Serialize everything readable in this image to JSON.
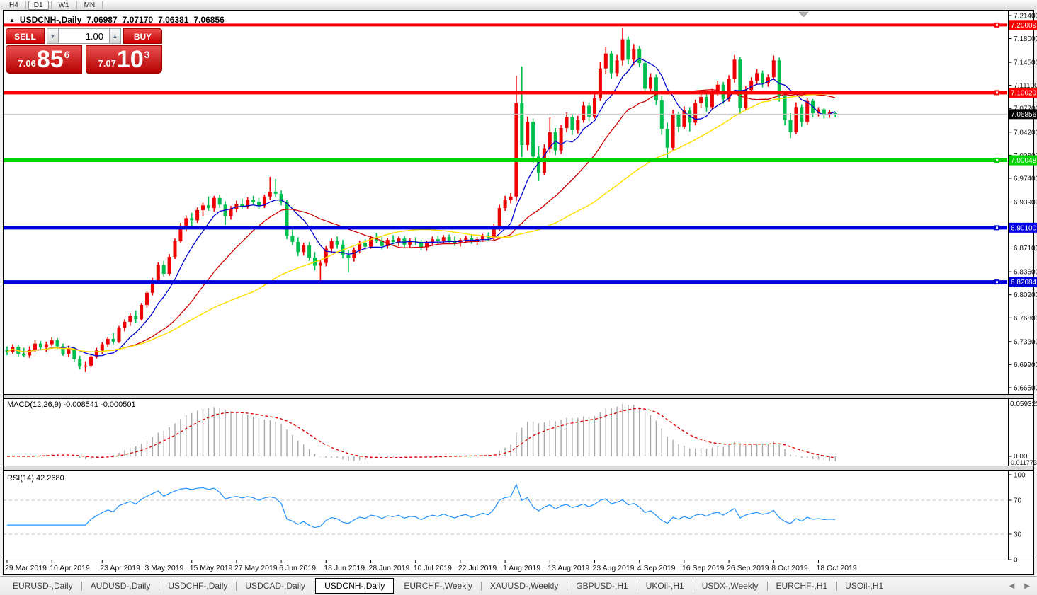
{
  "window": {
    "timeframes": [
      {
        "label": "H4",
        "active": false
      },
      {
        "label": "D1",
        "active": true
      },
      {
        "label": "W1",
        "active": false
      },
      {
        "label": "MN",
        "active": false
      }
    ]
  },
  "chart": {
    "title": {
      "collapse_icon": "▲",
      "symbol": "USDCNH-,Daily",
      "open": "7.06987",
      "high": "7.07170",
      "low": "7.06381",
      "close": "7.06856"
    },
    "trade_panel": {
      "sell_label": "SELL",
      "buy_label": "BUY",
      "volume": "1.00",
      "spin_down_icon": "▼",
      "spin_up_icon": "▲",
      "sell_price": {
        "prefix": "7.06",
        "big": "85",
        "sup": "6"
      },
      "buy_price": {
        "prefix": "7.07",
        "big": "10",
        "sup": "3"
      }
    },
    "price_axis_ticks": [
      "7.21400",
      "7.18000",
      "7.14500",
      "7.11100",
      "7.07700",
      "7.04200",
      "7.00800",
      "6.97400",
      "6.93900",
      "6.87100",
      "6.83600",
      "6.80200",
      "6.76800",
      "6.73300",
      "6.69900",
      "6.66500"
    ],
    "levels": [
      {
        "label": "7.20009",
        "price": 7.20009,
        "color": "#ff0000",
        "thickness": 4
      },
      {
        "label": "7.10029",
        "price": 7.10029,
        "color": "#ff0000",
        "thickness": 5
      },
      {
        "label": "7.00048",
        "price": 7.00048,
        "color": "#00d400",
        "thickness": 5
      },
      {
        "label": "6.90100",
        "price": 6.901,
        "color": "#0000dd",
        "thickness": 5
      },
      {
        "label": "6.82084",
        "price": 6.82084,
        "color": "#0000dd",
        "thickness": 5
      }
    ],
    "current_price": {
      "label": "7.06856",
      "value": 7.06856
    }
  },
  "chart_data": {
    "type": "candlestick",
    "symbol": "USDCNH",
    "timeframe": "Daily",
    "y_range": [
      6.665,
      7.214
    ],
    "date_labels": [
      [
        0,
        "29 Mar 2019"
      ],
      [
        8,
        "10 Apr 2019"
      ],
      [
        17,
        "23 Apr 2019"
      ],
      [
        25,
        "3 May 2019"
      ],
      [
        33,
        "15 May 2019"
      ],
      [
        41,
        "27 May 2019"
      ],
      [
        49,
        "6 Jun 2019"
      ],
      [
        57,
        "18 Jun 2019"
      ],
      [
        65,
        "28 Jun 2019"
      ],
      [
        73,
        "10 Jul 2019"
      ],
      [
        81,
        "22 Jul 2019"
      ],
      [
        89,
        "1 Aug 2019"
      ],
      [
        97,
        "13 Aug 2019"
      ],
      [
        105,
        "23 Aug 2019"
      ],
      [
        113,
        "4 Sep 2019"
      ],
      [
        121,
        "16 Sep 2019"
      ],
      [
        129,
        "26 Sep 2019"
      ],
      [
        137,
        "8 Oct 2019"
      ],
      [
        145,
        "18 Oct 2019"
      ]
    ],
    "ma_periods": {
      "fast": 8,
      "mid": 21,
      "slow": 45
    },
    "candles": [
      [
        6.721,
        6.726,
        6.713,
        6.718
      ],
      [
        6.718,
        6.729,
        6.715,
        6.7255
      ],
      [
        6.7255,
        6.728,
        6.711,
        6.715
      ],
      [
        6.715,
        6.724,
        6.71,
        6.7125
      ],
      [
        6.7125,
        6.726,
        6.709,
        6.721
      ],
      [
        6.721,
        6.735,
        6.718,
        6.73
      ],
      [
        6.73,
        6.734,
        6.72,
        6.7245
      ],
      [
        6.7245,
        6.733,
        6.718,
        6.729
      ],
      [
        6.729,
        6.7395,
        6.726,
        6.735
      ],
      [
        6.735,
        6.738,
        6.722,
        6.726
      ],
      [
        6.726,
        6.73,
        6.712,
        6.715
      ],
      [
        6.715,
        6.727,
        6.71,
        6.723
      ],
      [
        6.723,
        6.725,
        6.703,
        6.707
      ],
      [
        6.707,
        6.712,
        6.692,
        6.696
      ],
      [
        6.696,
        6.704,
        6.688,
        6.6975
      ],
      [
        6.6975,
        6.715,
        6.695,
        6.711
      ],
      [
        6.711,
        6.724,
        6.708,
        6.72
      ],
      [
        6.72,
        6.732,
        6.715,
        6.729
      ],
      [
        6.729,
        6.74,
        6.725,
        6.737
      ],
      [
        6.737,
        6.746,
        6.729,
        6.733
      ],
      [
        6.733,
        6.756,
        6.731,
        6.753
      ],
      [
        6.753,
        6.766,
        6.748,
        6.762
      ],
      [
        6.762,
        6.775,
        6.756,
        6.771
      ],
      [
        6.771,
        6.779,
        6.761,
        6.766
      ],
      [
        6.766,
        6.79,
        6.764,
        6.787
      ],
      [
        6.787,
        6.808,
        6.783,
        6.805
      ],
      [
        6.805,
        6.827,
        6.801,
        6.823
      ],
      [
        6.823,
        6.85,
        6.82,
        6.846
      ],
      [
        6.846,
        6.852,
        6.829,
        6.833
      ],
      [
        6.833,
        6.862,
        6.83,
        6.858
      ],
      [
        6.858,
        6.885,
        6.855,
        6.881
      ],
      [
        6.881,
        6.908,
        6.879,
        6.904
      ],
      [
        6.904,
        6.919,
        6.895,
        6.915
      ],
      [
        6.915,
        6.923,
        6.901,
        6.912
      ],
      [
        6.912,
        6.931,
        6.908,
        6.927
      ],
      [
        6.927,
        6.938,
        6.918,
        6.934
      ],
      [
        6.934,
        6.947,
        6.926,
        6.93
      ],
      [
        6.93,
        6.948,
        6.925,
        6.945
      ],
      [
        6.945,
        6.95,
        6.93,
        6.935
      ],
      [
        6.935,
        6.94,
        6.905,
        6.918
      ],
      [
        6.918,
        6.933,
        6.913,
        6.929
      ],
      [
        6.929,
        6.941,
        6.924,
        6.936
      ],
      [
        6.936,
        6.944,
        6.928,
        6.932
      ],
      [
        6.932,
        6.946,
        6.929,
        6.942
      ],
      [
        6.942,
        6.948,
        6.935,
        6.939
      ],
      [
        6.939,
        6.945,
        6.929,
        6.933
      ],
      [
        6.933,
        6.95,
        6.93,
        6.947
      ],
      [
        6.947,
        6.976,
        6.942,
        6.954
      ],
      [
        6.954,
        6.973,
        6.946,
        6.951
      ],
      [
        6.951,
        6.956,
        6.934,
        6.939
      ],
      [
        6.939,
        6.942,
        6.884,
        6.889
      ],
      [
        6.889,
        6.898,
        6.875,
        6.88
      ],
      [
        6.88,
        6.887,
        6.859,
        6.865
      ],
      [
        6.865,
        6.879,
        6.86,
        6.875
      ],
      [
        6.875,
        6.88,
        6.852,
        6.857
      ],
      [
        6.857,
        6.865,
        6.838,
        6.845
      ],
      [
        6.845,
        6.853,
        6.823,
        6.849
      ],
      [
        6.849,
        6.874,
        6.844,
        6.87
      ],
      [
        6.87,
        6.885,
        6.864,
        6.881
      ],
      [
        6.881,
        6.888,
        6.87,
        6.876
      ],
      [
        6.876,
        6.883,
        6.856,
        6.861
      ],
      [
        6.861,
        6.868,
        6.835,
        6.856
      ],
      [
        6.856,
        6.872,
        6.851,
        6.868
      ],
      [
        6.868,
        6.882,
        6.863,
        6.878
      ],
      [
        6.878,
        6.884,
        6.869,
        6.873
      ],
      [
        6.873,
        6.889,
        6.87,
        6.885
      ],
      [
        6.885,
        6.893,
        6.878,
        6.882
      ],
      [
        6.882,
        6.887,
        6.869,
        6.874
      ],
      [
        6.874,
        6.886,
        6.87,
        6.883
      ],
      [
        6.883,
        6.89,
        6.876,
        6.88
      ],
      [
        6.88,
        6.888,
        6.874,
        6.885
      ],
      [
        6.885,
        6.889,
        6.872,
        6.876
      ],
      [
        6.876,
        6.885,
        6.871,
        6.881
      ],
      [
        6.881,
        6.887,
        6.875,
        6.88
      ],
      [
        6.88,
        6.883,
        6.868,
        6.872
      ],
      [
        6.872,
        6.882,
        6.867,
        6.879
      ],
      [
        6.879,
        6.888,
        6.875,
        6.884
      ],
      [
        6.884,
        6.889,
        6.877,
        6.881
      ],
      [
        6.881,
        6.89,
        6.878,
        6.887
      ],
      [
        6.887,
        6.891,
        6.879,
        6.882
      ],
      [
        6.882,
        6.888,
        6.874,
        6.878
      ],
      [
        6.878,
        6.886,
        6.873,
        6.883
      ],
      [
        6.883,
        6.889,
        6.878,
        6.886
      ],
      [
        6.886,
        6.89,
        6.877,
        6.88
      ],
      [
        6.88,
        6.887,
        6.875,
        6.884
      ],
      [
        6.884,
        6.892,
        6.88,
        6.889
      ],
      [
        6.889,
        6.894,
        6.882,
        6.886
      ],
      [
        6.886,
        6.907,
        6.883,
        6.899
      ],
      [
        6.899,
        6.935,
        6.896,
        6.93
      ],
      [
        6.93,
        6.948,
        6.926,
        6.942
      ],
      [
        6.942,
        6.952,
        6.937,
        6.947
      ],
      [
        6.947,
        7.125,
        6.94,
        7.085
      ],
      [
        7.085,
        7.139,
        7.005,
        7.023
      ],
      [
        7.023,
        7.065,
        7.015,
        7.057
      ],
      [
        7.057,
        7.062,
        6.996,
        7.006
      ],
      [
        7.006,
        7.021,
        6.97,
        6.982
      ],
      [
        6.982,
        7.024,
        6.978,
        7.018
      ],
      [
        7.018,
        7.064,
        7.012,
        7.042
      ],
      [
        7.042,
        7.048,
        7.008,
        7.015
      ],
      [
        7.015,
        7.053,
        7.01,
        7.048
      ],
      [
        7.048,
        7.071,
        7.042,
        7.064
      ],
      [
        7.064,
        7.069,
        7.038,
        7.045
      ],
      [
        7.045,
        7.066,
        7.04,
        7.06
      ],
      [
        7.06,
        7.087,
        7.056,
        7.081
      ],
      [
        7.081,
        7.086,
        7.058,
        7.065
      ],
      [
        7.065,
        7.098,
        7.062,
        7.092
      ],
      [
        7.092,
        7.145,
        7.088,
        7.136
      ],
      [
        7.136,
        7.168,
        7.128,
        7.158
      ],
      [
        7.158,
        7.162,
        7.121,
        7.129
      ],
      [
        7.129,
        7.156,
        7.124,
        7.148
      ],
      [
        7.148,
        7.196,
        7.14,
        7.179
      ],
      [
        7.179,
        7.183,
        7.142,
        7.149
      ],
      [
        7.149,
        7.172,
        7.141,
        7.165
      ],
      [
        7.165,
        7.169,
        7.138,
        7.144
      ],
      [
        7.144,
        7.148,
        7.098,
        7.106
      ],
      [
        7.106,
        7.129,
        7.101,
        7.123
      ],
      [
        7.123,
        7.127,
        7.082,
        7.089
      ],
      [
        7.089,
        7.095,
        7.038,
        7.047
      ],
      [
        7.047,
        7.056,
        6.998,
        7.019
      ],
      [
        7.019,
        7.075,
        7.015,
        7.068
      ],
      [
        7.068,
        7.072,
        7.042,
        7.05
      ],
      [
        7.05,
        7.08,
        7.046,
        7.074
      ],
      [
        7.074,
        7.079,
        7.043,
        7.056
      ],
      [
        7.056,
        7.09,
        7.052,
        7.085
      ],
      [
        7.085,
        7.099,
        7.078,
        7.094
      ],
      [
        7.094,
        7.098,
        7.072,
        7.079
      ],
      [
        7.079,
        7.106,
        7.075,
        7.101
      ],
      [
        7.101,
        7.118,
        7.095,
        7.112
      ],
      [
        7.112,
        7.116,
        7.084,
        7.091
      ],
      [
        7.091,
        7.126,
        7.087,
        7.12
      ],
      [
        7.12,
        7.156,
        7.115,
        7.149
      ],
      [
        7.149,
        7.153,
        7.069,
        7.078
      ],
      [
        7.078,
        7.11,
        7.074,
        7.104
      ],
      [
        7.104,
        7.123,
        7.099,
        7.118
      ],
      [
        7.118,
        7.135,
        7.112,
        7.129
      ],
      [
        7.129,
        7.133,
        7.108,
        7.114
      ],
      [
        7.114,
        7.127,
        7.109,
        7.123
      ],
      [
        7.123,
        7.155,
        7.119,
        7.148
      ],
      [
        7.148,
        7.152,
        7.087,
        7.095
      ],
      [
        7.095,
        7.101,
        7.052,
        7.06
      ],
      [
        7.06,
        7.07,
        7.033,
        7.042
      ],
      [
        7.042,
        7.086,
        7.039,
        7.079
      ],
      [
        7.079,
        7.083,
        7.05,
        7.057
      ],
      [
        7.057,
        7.092,
        7.053,
        7.088
      ],
      [
        7.088,
        7.091,
        7.064,
        7.07
      ],
      [
        7.07,
        7.079,
        7.065,
        7.0755
      ],
      [
        7.0755,
        7.078,
        7.062,
        7.068
      ],
      [
        7.068,
        7.075,
        7.063,
        7.071
      ],
      [
        7.0699,
        7.0717,
        7.0638,
        7.0686
      ]
    ]
  },
  "macd": {
    "label": "MACD(12,26,9) -0.008541 -0.000501",
    "params": "12,26,9",
    "value": "-0.008541",
    "signal_value": "-0.000501",
    "axis_top": "0.059323",
    "axis_zero": "0.00",
    "axis_bottom": "-0.011773"
  },
  "rsi": {
    "label": "RSI(14) 42.2680",
    "period": "14",
    "value": "42.2680",
    "axis": [
      "100",
      "70",
      "30",
      "0"
    ],
    "guide_levels": [
      70,
      30
    ]
  },
  "tabs": {
    "items": [
      {
        "label": "EURUSD-,Daily",
        "active": false
      },
      {
        "label": "AUDUSD-,Daily",
        "active": false
      },
      {
        "label": "USDCHF-,Daily",
        "active": false
      },
      {
        "label": "USDCAD-,Daily",
        "active": false
      },
      {
        "label": "USDCNH-,Daily",
        "active": true
      },
      {
        "label": "EURCHF-,Weekly",
        "active": false
      },
      {
        "label": "XAUUSD-,Weekly",
        "active": false
      },
      {
        "label": "GBPUSD-,H1",
        "active": false
      },
      {
        "label": "UKOil-,H1",
        "active": false
      },
      {
        "label": "USDX-,Weekly",
        "active": false
      },
      {
        "label": "EURCHF-,H1",
        "active": false
      },
      {
        "label": "USOil-,H1",
        "active": false
      }
    ],
    "scroll_left_icon": "◀",
    "scroll_right_icon": "▶"
  },
  "colors": {
    "bull": "#ee0000",
    "bear": "#00bf4d",
    "ma_fast": "#0000cc",
    "ma_mid": "#cc0000",
    "ma_slow": "#ffdf00",
    "current_line": "#c8c8c8",
    "badge_current": "#000000",
    "macd_bar": "#a8a8a8",
    "macd_signal": "#e00000",
    "rsi_line": "#1e90ff"
  }
}
